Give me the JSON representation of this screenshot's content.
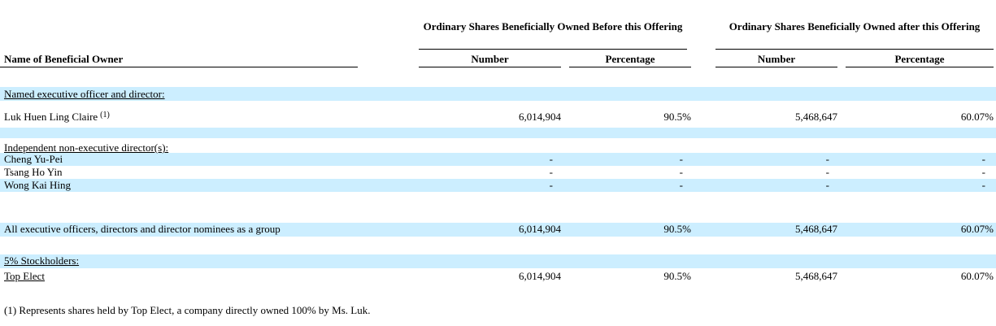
{
  "table": {
    "header": {
      "group_before": "Ordinary Shares Beneficially Owned Before this Offering",
      "group_after": "Ordinary Shares Beneficially Owned after this Offering",
      "columns": [
        "Name of Beneficial Owner",
        "Number",
        "Percentage",
        "Number",
        "Percentage"
      ]
    },
    "rows": [
      {
        "label": "Named executive officer and director:",
        "underline": true
      },
      {
        "cells": [
          "Luk Huen Ling Claire",
          "6,014,904",
          "90.5%",
          "5,468,647",
          "60.07%"
        ],
        "note": "(1)"
      },
      {
        "label": "Independent non-executive director(s):",
        "underline": true
      },
      {
        "cells": [
          "Cheng Yu-Pei",
          "-",
          "-",
          "-",
          "-"
        ]
      },
      {
        "cells": [
          "Tsang Ho Yin",
          "-",
          "-",
          "-",
          "-"
        ]
      },
      {
        "cells": [
          "Wong Kai Hing",
          "-",
          "-",
          "-",
          "-"
        ]
      },
      {
        "cells": [
          "All executive officers, directors and director nominees as a group",
          "6,014,904",
          "90.5%",
          "5,468,647",
          "60.07%"
        ]
      },
      {
        "label": "5% Stockholders:",
        "underline": true
      },
      {
        "cells": [
          "Top Elect",
          "6,014,904",
          "90.5%",
          "5,468,647",
          "60.07%"
        ],
        "underline": true
      }
    ],
    "footnote": "(1) Represents shares held by Top Elect, a company directly owned 100% by Ms. Luk."
  }
}
